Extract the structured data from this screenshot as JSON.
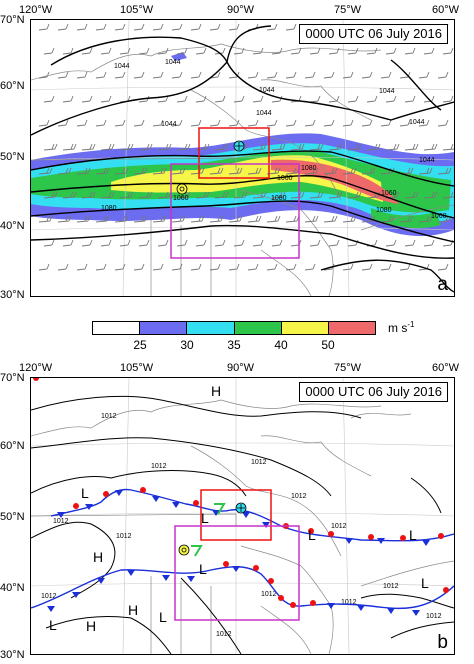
{
  "panel_a": {
    "label": "a",
    "timestamp": "0000 UTC 06 July 2016",
    "lon_labels": [
      "120°W",
      "105°W",
      "90°W",
      "75°W",
      "60°W"
    ],
    "lat_labels": [
      "70°N",
      "60°N",
      "50°N",
      "40°N",
      "30°N"
    ],
    "contour_labels": [
      "1044",
      "1044",
      "1044",
      "1044",
      "1044",
      "1044",
      "1044",
      "1044",
      "1060",
      "1060",
      "1060",
      "1060",
      "1080",
      "1080",
      "1080",
      "1080"
    ]
  },
  "colorbar": {
    "ticks": [
      "25",
      "30",
      "35",
      "40",
      "50"
    ],
    "unit": "m s",
    "unit_exp": "-1",
    "colors": [
      "#ffffff",
      "#6c6cf0",
      "#35dff2",
      "#2dc64a",
      "#f5f54a",
      "#ee6a6a"
    ]
  },
  "panel_b": {
    "label": "b",
    "timestamp": "0000 UTC 06 July 2016",
    "lon_labels": [
      "120°W",
      "105°W",
      "90°W",
      "75°W",
      "60°W"
    ],
    "lat_labels": [
      "70°N",
      "60°N",
      "50°N",
      "40°N",
      "30°N"
    ],
    "isobar_labels": [
      "1012",
      "1012",
      "1012",
      "1012",
      "1012",
      "1012",
      "1012",
      "1012",
      "1012",
      "1012",
      "1012",
      "1012",
      "1012"
    ],
    "pressure_centers": [
      "H",
      "L",
      "L",
      "H",
      "L",
      "H",
      "L",
      "L",
      "H",
      "L",
      "L",
      "L"
    ]
  }
}
